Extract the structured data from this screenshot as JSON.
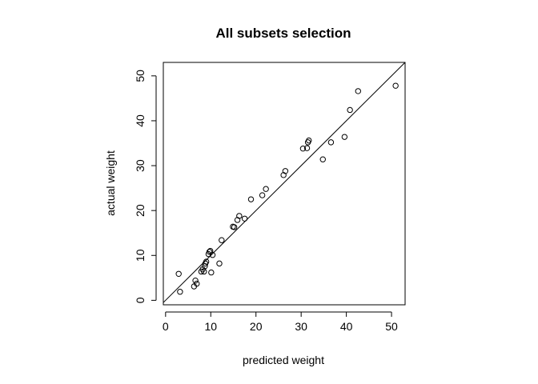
{
  "chart_data": {
    "type": "scatter",
    "title": "All subsets selection",
    "xlabel": "predicted weight",
    "ylabel": "actual weight",
    "xlim": [
      -0.5,
      53
    ],
    "ylim": [
      -1,
      53
    ],
    "xticks": [
      0,
      10,
      20,
      30,
      40,
      50
    ],
    "yticks": [
      0,
      10,
      20,
      30,
      40,
      50
    ],
    "reference_line": {
      "label": "y = x",
      "slope": 1,
      "intercept": 0
    },
    "points": [
      [
        2.9,
        5.9
      ],
      [
        3.2,
        1.9
      ],
      [
        6.3,
        3.1
      ],
      [
        6.6,
        4.4
      ],
      [
        6.9,
        3.7
      ],
      [
        7.9,
        6.4
      ],
      [
        8.2,
        6.9
      ],
      [
        8.5,
        6.4
      ],
      [
        8.7,
        7.6
      ],
      [
        8.8,
        8.2
      ],
      [
        9.0,
        8.6
      ],
      [
        9.5,
        10.3
      ],
      [
        9.7,
        10.8
      ],
      [
        9.9,
        11.0
      ],
      [
        10.1,
        6.2
      ],
      [
        10.4,
        10.1
      ],
      [
        11.9,
        8.2
      ],
      [
        12.4,
        13.4
      ],
      [
        14.9,
        16.4
      ],
      [
        15.2,
        16.3
      ],
      [
        15.9,
        17.9
      ],
      [
        16.3,
        18.8
      ],
      [
        17.5,
        18.2
      ],
      [
        18.9,
        22.5
      ],
      [
        21.4,
        23.4
      ],
      [
        22.2,
        24.8
      ],
      [
        26.1,
        27.9
      ],
      [
        26.5,
        28.8
      ],
      [
        30.4,
        33.8
      ],
      [
        31.3,
        33.9
      ],
      [
        31.5,
        35.2
      ],
      [
        31.7,
        35.6
      ],
      [
        34.8,
        31.4
      ],
      [
        36.6,
        35.2
      ],
      [
        39.6,
        36.4
      ],
      [
        40.8,
        42.4
      ],
      [
        42.6,
        46.6
      ],
      [
        50.9,
        47.8
      ]
    ]
  }
}
